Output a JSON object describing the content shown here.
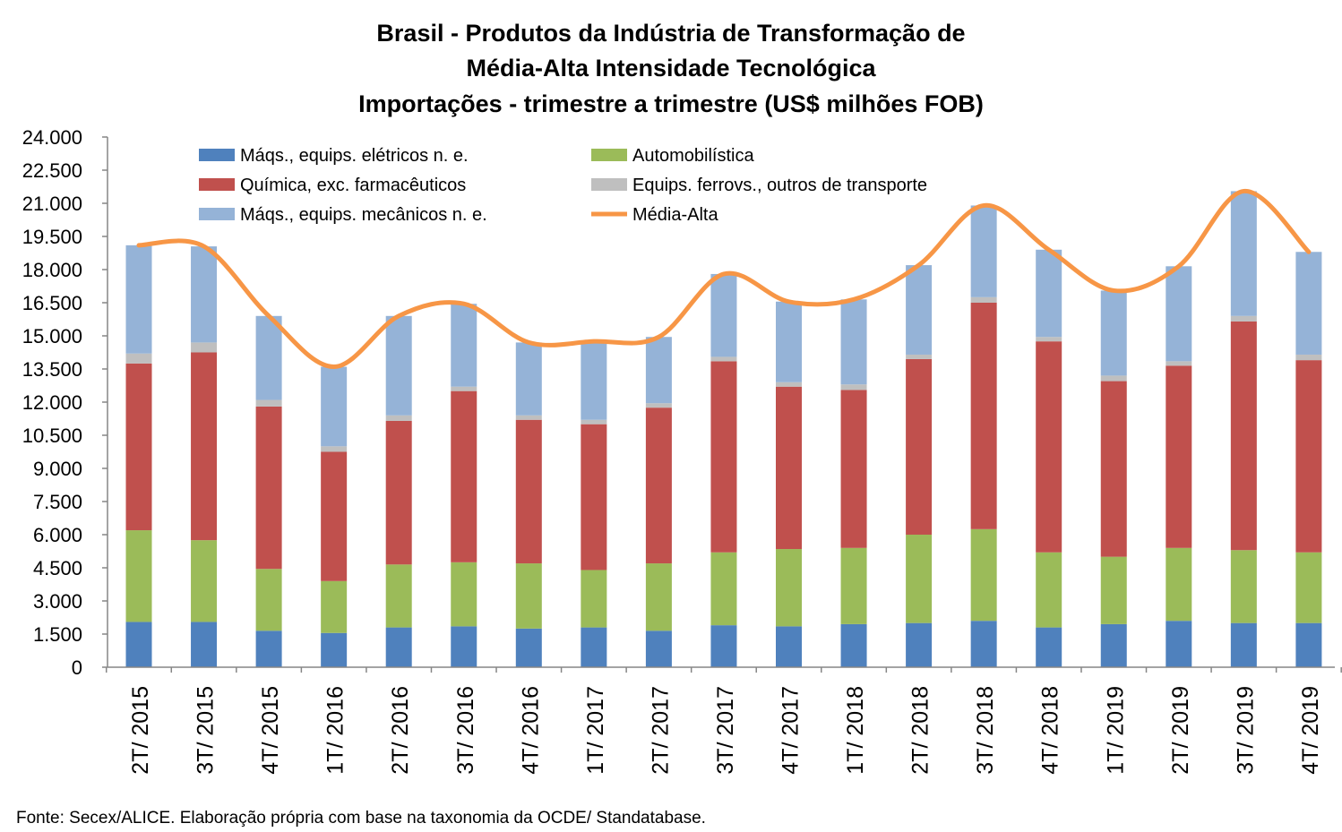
{
  "chart_data": {
    "type": "bar",
    "title_lines": [
      "Brasil - Produtos da Indústria de Transformação de",
      "Média-Alta Intensidade Tecnológica",
      "Importações - trimestre a trimestre (US$ milhões FOB)"
    ],
    "categories": [
      "2T/ 2015",
      "3T/ 2015",
      "4T/ 2015",
      "1T/ 2016",
      "2T/ 2016",
      "3T/ 2016",
      "4T/ 2016",
      "1T/ 2017",
      "2T/ 2017",
      "3T/ 2017",
      "4T/ 2017",
      "1T/ 2018",
      "2T/ 2018",
      "3T/ 2018",
      "4T/ 2018",
      "1T/ 2019",
      "2T/ 2019",
      "3T/ 2019",
      "4T/ 2019"
    ],
    "stacked": true,
    "ylim": [
      0,
      24000
    ],
    "yticks": [
      "0",
      "1.500",
      "3.000",
      "4.500",
      "6.000",
      "7.500",
      "9.000",
      "10.500",
      "12.000",
      "13.500",
      "15.000",
      "16.500",
      "18.000",
      "19.500",
      "21.000",
      "22.500",
      "24.000"
    ],
    "series": [
      {
        "name": "Máqs., equips. elétricos n. e.",
        "color": "#4F81BD",
        "values": [
          2050,
          2050,
          1650,
          1550,
          1800,
          1850,
          1750,
          1800,
          1650,
          1900,
          1850,
          1950,
          2000,
          2100,
          1800,
          1950,
          2100,
          2000,
          2000
        ]
      },
      {
        "name": "Automobilística",
        "color": "#9BBB59",
        "values": [
          4150,
          3700,
          2800,
          2350,
          2850,
          2900,
          2950,
          2600,
          3050,
          3300,
          3500,
          3450,
          4000,
          4150,
          3400,
          3050,
          3300,
          3300,
          3200
        ]
      },
      {
        "name": "Química, exc. farmacêuticos",
        "color": "#C0504D",
        "values": [
          7550,
          8500,
          7350,
          5850,
          6500,
          7750,
          6500,
          6600,
          7050,
          8650,
          7350,
          7150,
          7950,
          10250,
          9550,
          7950,
          8250,
          10350,
          8700
        ]
      },
      {
        "name": "Equips. ferrovs., outros de transporte",
        "color": "#BFBFBF",
        "values": [
          450,
          450,
          300,
          250,
          250,
          200,
          200,
          200,
          200,
          200,
          200,
          250,
          200,
          250,
          200,
          250,
          200,
          250,
          250
        ]
      },
      {
        "name": "Máqs., equips. mecânicos  n. e.",
        "color": "#95B3D7",
        "values": [
          4900,
          4350,
          3800,
          3600,
          4500,
          3750,
          3300,
          3550,
          3000,
          3750,
          3650,
          3850,
          4050,
          4150,
          3950,
          3850,
          4300,
          5650,
          4650
        ]
      }
    ],
    "line": {
      "name": "Média-Alta",
      "color": "#F79646",
      "values": [
        19100,
        19050,
        15900,
        13600,
        15900,
        16450,
        14700,
        14750,
        14950,
        17800,
        16550,
        16650,
        18200,
        20900,
        18900,
        17050,
        18150,
        21550,
        18800
      ]
    },
    "legend_placement": "top, inside plot, three rows by two columns",
    "grid": false,
    "source": "Fonte: Secex/ALICE. Elaboração própria com base na taxonomia da OCDE/ Standatabase."
  }
}
